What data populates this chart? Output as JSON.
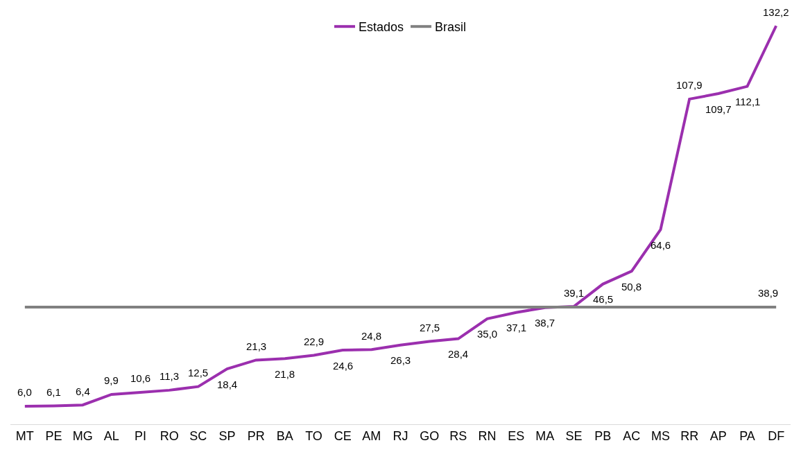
{
  "chart_data": {
    "type": "line",
    "categories": [
      "MT",
      "PE",
      "MG",
      "AL",
      "PI",
      "RO",
      "SC",
      "SP",
      "PR",
      "BA",
      "TO",
      "CE",
      "AM",
      "RJ",
      "GO",
      "RS",
      "RN",
      "ES",
      "MA",
      "SE",
      "PB",
      "AC",
      "MS",
      "RR",
      "AP",
      "PA",
      "DF"
    ],
    "series": [
      {
        "name": "Estados",
        "color": "#9b2fae",
        "values": [
          6.0,
          6.1,
          6.4,
          9.9,
          10.6,
          11.3,
          12.5,
          18.4,
          21.3,
          21.8,
          22.9,
          24.6,
          24.8,
          26.3,
          27.5,
          28.4,
          35.0,
          37.1,
          38.7,
          39.1,
          46.5,
          50.8,
          64.6,
          107.9,
          109.7,
          112.1,
          132.2
        ],
        "value_labels": [
          "6,0",
          "6,1",
          "6,4",
          "9,9",
          "10,6",
          "11,3",
          "12,5",
          "18,4",
          "21,3",
          "21,8",
          "22,9",
          "24,6",
          "24,8",
          "26,3",
          "27,5",
          "28,4",
          "35,0",
          "37,1",
          "38,7",
          "39,1",
          "46,5",
          "50,8",
          "64,6",
          "107,9",
          "109,7",
          "112,1",
          "132,2"
        ]
      },
      {
        "name": "Brasil",
        "color": "#808080",
        "values": [
          38.9,
          38.9,
          38.9,
          38.9,
          38.9,
          38.9,
          38.9,
          38.9,
          38.9,
          38.9,
          38.9,
          38.9,
          38.9,
          38.9,
          38.9,
          38.9,
          38.9,
          38.9,
          38.9,
          38.9,
          38.9,
          38.9,
          38.9,
          38.9,
          38.9,
          38.9,
          38.9
        ],
        "value_labels": [
          null,
          null,
          null,
          null,
          null,
          null,
          null,
          null,
          null,
          null,
          null,
          null,
          null,
          null,
          null,
          null,
          null,
          null,
          null,
          null,
          null,
          null,
          null,
          null,
          null,
          null,
          "38,9"
        ]
      }
    ],
    "legend": "top",
    "marker": "none",
    "line_style": "solid"
  }
}
